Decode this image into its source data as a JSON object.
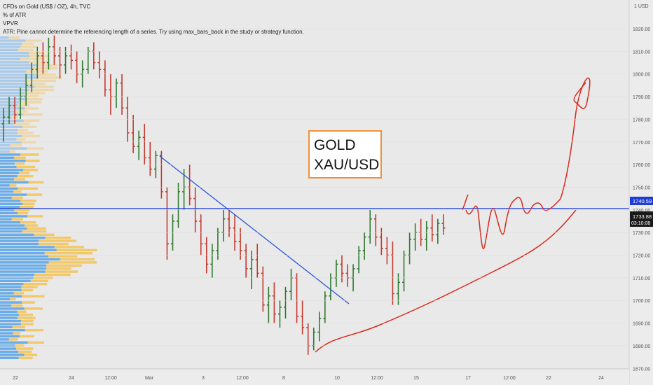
{
  "header": {
    "line1": "CFDs on Gold (US$ / OZ), 4h, TVC",
    "line2": "% of ATR",
    "line3": "VPVR",
    "line4": "ATR: Pine cannot determine the referencing length of a series. Try using max_bars_back in the study or strategy function."
  },
  "annotation": {
    "line1": "GOLD",
    "line2": "XAU/USD"
  },
  "colors": {
    "up": "#2f7a2f",
    "down": "#c43a2e",
    "hline": "#1d3dd6",
    "trend": "#2855d8",
    "sketch": "#d9291c",
    "vp_up": "#5ba5e8",
    "vp_down": "#f3c45a"
  },
  "chart_data": {
    "type": "candlestick",
    "title": "CFDs on Gold (US$ / OZ), 4h, TVC",
    "currency": "1 USD",
    "y_axis": {
      "min": 1665,
      "max": 1825,
      "ticks": [
        1670,
        1680,
        1690,
        1700,
        1710,
        1720,
        1730,
        1740,
        1750,
        1760,
        1770,
        1780,
        1790,
        1800,
        1810,
        1820
      ]
    },
    "x_ticks": [
      "22",
      "24",
      "12:00",
      "Mar",
      "3",
      "12:00",
      "8",
      "10",
      "12:00",
      "15",
      "17",
      "12:00",
      "22",
      "24"
    ],
    "horizontal_line": {
      "price": 1740.59,
      "label": "1740.59"
    },
    "last_price": {
      "value": 1733.88,
      "label": "1733.88",
      "countdown": "03:10:08"
    },
    "candles_ohlc": [
      [
        1778,
        1785,
        1770,
        1781
      ],
      [
        1781,
        1790,
        1778,
        1786
      ],
      [
        1786,
        1790,
        1778,
        1782
      ],
      [
        1782,
        1794,
        1780,
        1790
      ],
      [
        1790,
        1800,
        1786,
        1795
      ],
      [
        1795,
        1805,
        1792,
        1802
      ],
      [
        1802,
        1812,
        1798,
        1808
      ],
      [
        1808,
        1814,
        1800,
        1805
      ],
      [
        1805,
        1816,
        1802,
        1812
      ],
      [
        1812,
        1817,
        1804,
        1808
      ],
      [
        1808,
        1812,
        1798,
        1804
      ],
      [
        1804,
        1812,
        1800,
        1808
      ],
      [
        1808,
        1813,
        1802,
        1806
      ],
      [
        1806,
        1810,
        1796,
        1800
      ],
      [
        1800,
        1806,
        1794,
        1802
      ],
      [
        1802,
        1812,
        1800,
        1810
      ],
      [
        1810,
        1814,
        1802,
        1805
      ],
      [
        1805,
        1810,
        1798,
        1802
      ],
      [
        1802,
        1806,
        1790,
        1793
      ],
      [
        1793,
        1800,
        1782,
        1790
      ],
      [
        1790,
        1798,
        1785,
        1796
      ],
      [
        1796,
        1800,
        1782,
        1785
      ],
      [
        1785,
        1790,
        1770,
        1774
      ],
      [
        1774,
        1782,
        1765,
        1768
      ],
      [
        1768,
        1775,
        1762,
        1772
      ],
      [
        1772,
        1778,
        1760,
        1763
      ],
      [
        1763,
        1770,
        1755,
        1758
      ],
      [
        1758,
        1766,
        1754,
        1764
      ],
      [
        1764,
        1766,
        1745,
        1748
      ],
      [
        1748,
        1750,
        1718,
        1725
      ],
      [
        1725,
        1738,
        1722,
        1735
      ],
      [
        1735,
        1752,
        1732,
        1748
      ],
      [
        1748,
        1758,
        1740,
        1750
      ],
      [
        1750,
        1760,
        1742,
        1745
      ],
      [
        1745,
        1750,
        1730,
        1735
      ],
      [
        1735,
        1738,
        1720,
        1725
      ],
      [
        1725,
        1728,
        1712,
        1716
      ],
      [
        1716,
        1725,
        1710,
        1722
      ],
      [
        1722,
        1732,
        1718,
        1730
      ],
      [
        1730,
        1740,
        1726,
        1736
      ],
      [
        1736,
        1740,
        1728,
        1732
      ],
      [
        1732,
        1738,
        1722,
        1726
      ],
      [
        1726,
        1732,
        1718,
        1722
      ],
      [
        1722,
        1725,
        1710,
        1714
      ],
      [
        1714,
        1722,
        1705,
        1718
      ],
      [
        1718,
        1725,
        1710,
        1712
      ],
      [
        1712,
        1715,
        1695,
        1698
      ],
      [
        1698,
        1706,
        1690,
        1702
      ],
      [
        1702,
        1708,
        1690,
        1694
      ],
      [
        1694,
        1700,
        1688,
        1697
      ],
      [
        1697,
        1706,
        1692,
        1704
      ],
      [
        1704,
        1714,
        1700,
        1710
      ],
      [
        1710,
        1712,
        1690,
        1693
      ],
      [
        1693,
        1700,
        1685,
        1688
      ],
      [
        1688,
        1690,
        1676,
        1680
      ],
      [
        1680,
        1688,
        1678,
        1686
      ],
      [
        1686,
        1695,
        1682,
        1692
      ],
      [
        1692,
        1704,
        1690,
        1702
      ],
      [
        1702,
        1712,
        1700,
        1710
      ],
      [
        1710,
        1718,
        1706,
        1716
      ],
      [
        1716,
        1720,
        1708,
        1712
      ],
      [
        1712,
        1716,
        1706,
        1710
      ],
      [
        1710,
        1716,
        1704,
        1714
      ],
      [
        1714,
        1724,
        1712,
        1722
      ],
      [
        1722,
        1730,
        1718,
        1728
      ],
      [
        1728,
        1740,
        1725,
        1736
      ],
      [
        1736,
        1738,
        1724,
        1728
      ],
      [
        1728,
        1732,
        1720,
        1723
      ],
      [
        1723,
        1728,
        1716,
        1720
      ],
      [
        1720,
        1726,
        1698,
        1703
      ],
      [
        1703,
        1712,
        1698,
        1708
      ],
      [
        1708,
        1722,
        1704,
        1720
      ],
      [
        1720,
        1730,
        1716,
        1727
      ],
      [
        1727,
        1734,
        1722,
        1730
      ],
      [
        1730,
        1736,
        1724,
        1727
      ],
      [
        1727,
        1735,
        1722,
        1732
      ],
      [
        1732,
        1738,
        1726,
        1729
      ],
      [
        1729,
        1736,
        1725,
        1734
      ],
      [
        1734,
        1738,
        1729,
        1732
      ]
    ],
    "trendline": {
      "from": [
        1761,
        "Mar 1"
      ],
      "to": [
        1693,
        "Mar 10"
      ]
    },
    "volume_profile": "VPVR histogram on left (up volume blue, down volume yellow)"
  }
}
